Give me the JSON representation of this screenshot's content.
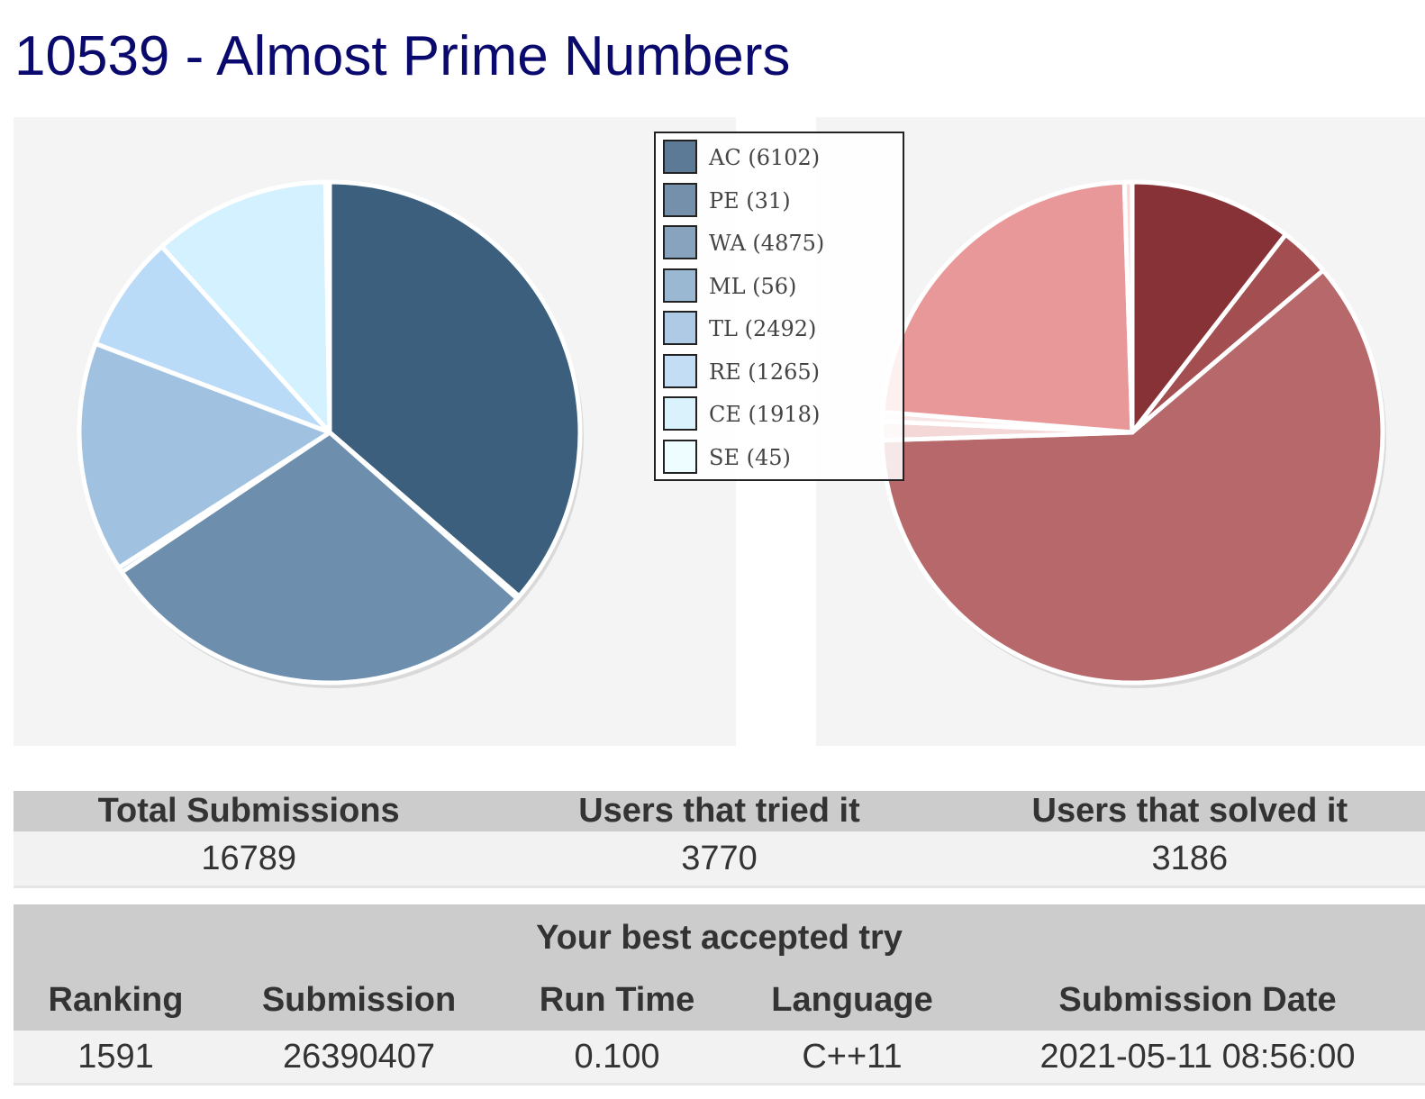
{
  "page": {
    "title": "10539 - Almost Prime Numbers"
  },
  "chart_data": [
    {
      "type": "pie",
      "title": "",
      "categories": [
        "AC",
        "PE",
        "WA",
        "ML",
        "TL",
        "RE",
        "CE",
        "SE"
      ],
      "values": [
        6102,
        31,
        4875,
        56,
        2492,
        1265,
        1918,
        45
      ],
      "colors": [
        "#3b5f7c",
        "#6d8fad",
        "#6d8fad",
        "#a0c2e0",
        "#a0c2e0",
        "#badbf7",
        "#d3f1fe",
        "#eafcff"
      ],
      "legend": {
        "placement": "center",
        "entries": [
          "AC (6102)",
          "PE (31)",
          "WA (4875)",
          "ML (56)",
          "TL (2492)",
          "RE (1265)",
          "CE (1918)",
          "SE (45)"
        ],
        "swatch_colors": [
          "#5c7a96",
          "#7590aa",
          "#87a3be",
          "#9bb8d2",
          "#aecae4",
          "#c3ddf4",
          "#d9f2fc",
          "#eefdff"
        ]
      }
    },
    {
      "type": "pie",
      "title": "",
      "values": [
        10.5,
        3.3,
        60.7,
        1.2,
        0.6,
        23.2,
        0.5
      ],
      "colors": [
        "#873236",
        "#a34e50",
        "#b7686a",
        "#f4d8d8",
        "#f8e6e6",
        "#e99899",
        "#f9d8d8"
      ],
      "legend": null
    }
  ],
  "stats": {
    "headers": [
      "Total Submissions",
      "Users that tried it",
      "Users that solved it"
    ],
    "values": [
      "16789",
      "3770",
      "3186"
    ]
  },
  "best_try": {
    "caption": "Your best accepted try",
    "headers": [
      "Ranking",
      "Submission",
      "Run Time",
      "Language",
      "Submission Date"
    ],
    "row": [
      "1591",
      "26390407",
      "0.100",
      "C++11",
      "2021-05-11 08:56:00"
    ]
  }
}
